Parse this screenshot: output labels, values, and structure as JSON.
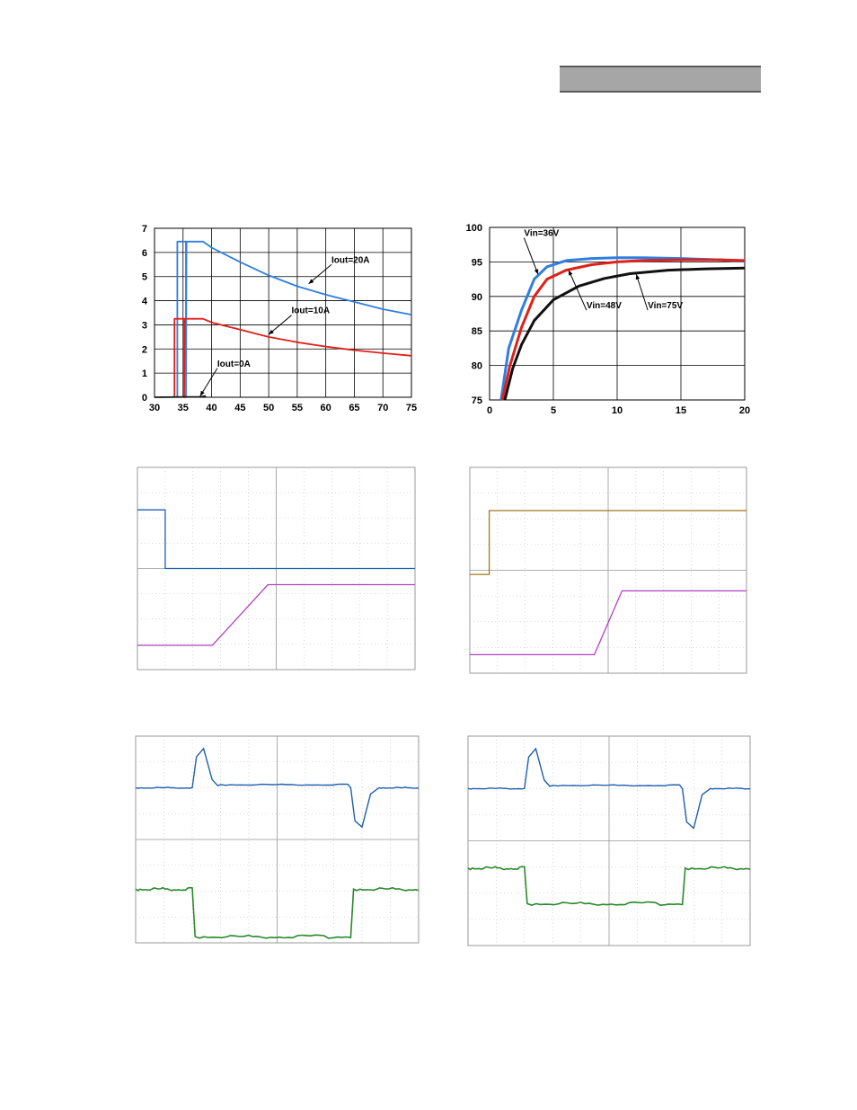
{
  "colors": {
    "blue": "#2f7fe0",
    "red": "#e0201a",
    "black": "#111111",
    "scope_blue": "#1f5fb0",
    "scope_magenta": "#b040c0",
    "scope_olive": "#a07820",
    "scope_green": "#2a8a2a",
    "header_bar": "#a6a6a6"
  },
  "chart_data": [
    {
      "type": "line",
      "xlim": [
        30,
        75
      ],
      "ylim": [
        0,
        7
      ],
      "xticks": [
        "30",
        "35",
        "40",
        "45",
        "50",
        "55",
        "60",
        "65",
        "70",
        "75"
      ],
      "yticks": [
        "0",
        "1",
        "2",
        "3",
        "4",
        "5",
        "6",
        "7"
      ],
      "grid": true,
      "series": [
        {
          "name": "Iout=20A",
          "color": "#2f7fe0",
          "points": [
            [
              34,
              0
            ],
            [
              34,
              6.45
            ],
            [
              35.5,
              6.45
            ],
            [
              35.5,
              0
            ],
            [
              35.6,
              6.45
            ],
            [
              38.5,
              6.45
            ],
            [
              40,
              6.2
            ],
            [
              45,
              5.6
            ],
            [
              50,
              5.05
            ],
            [
              55,
              4.6
            ],
            [
              60,
              4.25
            ],
            [
              65,
              3.95
            ],
            [
              70,
              3.65
            ],
            [
              75,
              3.42
            ]
          ]
        },
        {
          "name": "Iout=10A",
          "color": "#e0201a",
          "points": [
            [
              33.5,
              0
            ],
            [
              33.5,
              3.25
            ],
            [
              35.2,
              3.25
            ],
            [
              35.2,
              0
            ],
            [
              35.3,
              3.25
            ],
            [
              38.5,
              3.25
            ],
            [
              40,
              3.1
            ],
            [
              45,
              2.8
            ],
            [
              50,
              2.5
            ],
            [
              55,
              2.28
            ],
            [
              60,
              2.1
            ],
            [
              65,
              1.95
            ],
            [
              70,
              1.83
            ],
            [
              75,
              1.72
            ]
          ]
        },
        {
          "name": "Iout=0A",
          "color": "#111111",
          "points": [
            [
              30,
              0
            ],
            [
              38,
              0.02
            ],
            [
              39,
              0.05
            ]
          ]
        }
      ],
      "annotations": [
        {
          "text": "Iout=20A",
          "x": 57,
          "y": 4.7,
          "tx": 61,
          "ty": 5.5
        },
        {
          "text": "Iout=10A",
          "x": 50,
          "y": 2.6,
          "tx": 54,
          "ty": 3.4
        },
        {
          "text": "Iout=0A",
          "x": 38,
          "y": 0.05,
          "tx": 41,
          "ty": 1.2
        }
      ]
    },
    {
      "type": "line",
      "xlim": [
        0,
        20
      ],
      "ylim": [
        75,
        100
      ],
      "xticks": [
        "0",
        "5",
        "10",
        "15",
        "20"
      ],
      "yticks": [
        "75",
        "80",
        "85",
        "90",
        "95",
        "100"
      ],
      "grid": true,
      "series": [
        {
          "name": "Vin=36V",
          "color": "#2f7fe0",
          "points": [
            [
              0.9,
              75
            ],
            [
              1.5,
              82.5
            ],
            [
              2.5,
              88
            ],
            [
              3.5,
              92.5
            ],
            [
              4.5,
              94.3
            ],
            [
              6,
              95.2
            ],
            [
              8,
              95.5
            ],
            [
              10,
              95.6
            ],
            [
              12,
              95.6
            ],
            [
              15,
              95.5
            ],
            [
              18,
              95.3
            ],
            [
              20,
              95.1
            ]
          ]
        },
        {
          "name": "Vin=48V",
          "color": "#e0201a",
          "points": [
            [
              1.0,
              75
            ],
            [
              1.6,
              80
            ],
            [
              2.5,
              85.5
            ],
            [
              3.5,
              90
            ],
            [
              4.5,
              92.5
            ],
            [
              6,
              93.8
            ],
            [
              8,
              94.6
            ],
            [
              10,
              95.0
            ],
            [
              12,
              95.2
            ],
            [
              15,
              95.3
            ],
            [
              18,
              95.3
            ],
            [
              20,
              95.2
            ]
          ]
        },
        {
          "name": "Vin=75V",
          "color": "#111111",
          "points": [
            [
              1.2,
              75
            ],
            [
              1.8,
              79.5
            ],
            [
              2.5,
              83
            ],
            [
              3.5,
              86.5
            ],
            [
              5,
              89.5
            ],
            [
              7,
              91.5
            ],
            [
              9,
              92.6
            ],
            [
              11,
              93.3
            ],
            [
              14,
              93.8
            ],
            [
              17,
              94.0
            ],
            [
              20,
              94.1
            ]
          ]
        }
      ],
      "annotations": [
        {
          "text": "Vin=36V",
          "x": 3.8,
          "y": 93.2,
          "tx": 2.7,
          "ty": 98.5
        },
        {
          "text": "Vin=48V",
          "x": 6.2,
          "y": 93.8,
          "tx": 7.6,
          "ty": 88.0
        },
        {
          "text": "Vin=75V",
          "x": 11.5,
          "y": 93.2,
          "tx": 12.4,
          "ty": 88.0
        }
      ]
    }
  ]
}
